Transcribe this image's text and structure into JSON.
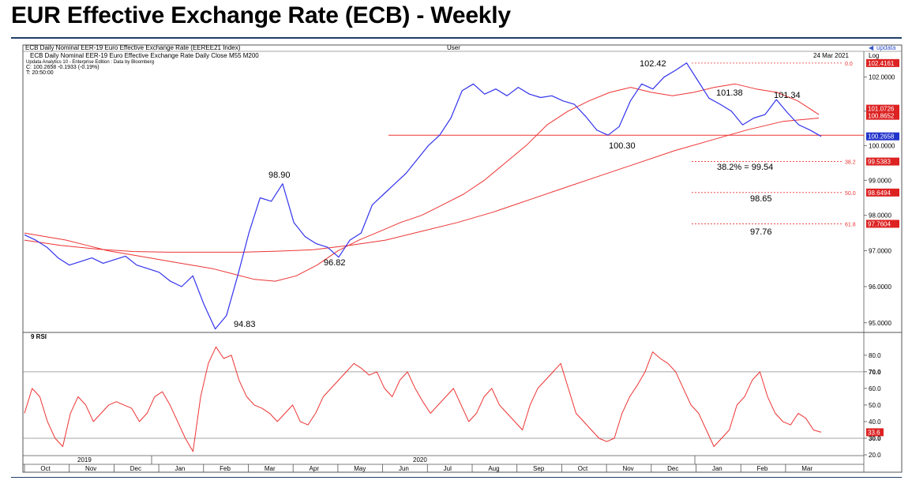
{
  "title": "EUR Effective Exchange Rate (ECB) - Weekly",
  "terminal": {
    "header_left": "ECB Daily Nominal EER-19 Euro Effective Exchange Rate (EEREE21 Index)",
    "header_mid": "User",
    "header_right": "updata",
    "subheader": "ECB Daily Nominal EER-19 Euro Effective Exchange Rate Daily Close M55   M200",
    "date": "24 Mar 2021",
    "scale": "Log",
    "source_line": "Updata Analytics 10 - Enterprise Edition : Data by Bloomberg",
    "close_line": "C: 100.2658  -0.1933 (-0.19%)",
    "time_line": "T: 20:50:00",
    "rsi_label": "9 RSI"
  },
  "chart_data": [
    {
      "type": "line",
      "series": [
        {
          "name": "EEREE21 Index",
          "color": "#3333ee",
          "values": [
            97.45,
            97.3,
            97.1,
            96.8,
            96.6,
            96.7,
            96.8,
            96.65,
            96.75,
            96.85,
            96.6,
            96.5,
            96.4,
            96.15,
            96.0,
            96.3,
            95.5,
            94.83,
            95.2,
            96.3,
            97.5,
            98.5,
            98.4,
            98.9,
            97.8,
            97.4,
            97.2,
            97.1,
            96.82,
            97.3,
            97.5,
            98.3,
            98.6,
            98.9,
            99.2,
            99.6,
            100.0,
            100.3,
            100.8,
            101.6,
            101.8,
            101.5,
            101.65,
            101.45,
            101.7,
            101.5,
            101.4,
            101.45,
            101.3,
            101.2,
            100.85,
            100.45,
            100.3,
            100.55,
            101.3,
            101.8,
            101.65,
            102.0,
            102.2,
            102.42,
            101.9,
            101.38,
            101.2,
            101.0,
            100.6,
            100.8,
            100.9,
            101.34,
            100.95,
            100.6,
            100.45,
            100.2658
          ]
        },
        {
          "name": "M55",
          "color": "#ee3333",
          "values": [
            97.5,
            97.4,
            97.3,
            97.15,
            97.0,
            96.9,
            96.8,
            96.7,
            96.6,
            96.5,
            96.35,
            96.2,
            96.15,
            96.3,
            96.6,
            97.0,
            97.3,
            97.55,
            97.8,
            98.0,
            98.3,
            98.6,
            99.0,
            99.5,
            100.0,
            100.6,
            101.0,
            101.3,
            101.55,
            101.7,
            101.55,
            101.45,
            101.55,
            101.7,
            101.8,
            101.65,
            101.55,
            101.3,
            100.9
          ]
        },
        {
          "name": "M200",
          "color": "#ee3333",
          "values": [
            97.3,
            97.15,
            97.05,
            96.98,
            96.96,
            96.96,
            96.96,
            96.99,
            97.03,
            97.15,
            97.3,
            97.55,
            97.8,
            98.1,
            98.45,
            98.8,
            99.15,
            99.5,
            99.85,
            100.15,
            100.45,
            100.7,
            100.8
          ]
        }
      ],
      "ylim": [
        94.8,
        102.6
      ],
      "yticks": [
        "102.0000",
        "101.0000",
        "100.0000",
        "99.0000",
        "98.0000",
        "97.0000",
        "96.0000",
        "95.0000"
      ],
      "annotations": [
        "102.42",
        "101.38",
        "101.34",
        "100.30",
        "98.90",
        "96.82",
        "94.83",
        "38.2% = 99.54",
        "98.65",
        "97.76"
      ],
      "levels": [
        {
          "label": "0.0",
          "value": 102.4161,
          "badge": "102.4161"
        },
        {
          "label": "38.2",
          "value": 99.5383,
          "badge": "99.5383"
        },
        {
          "label": "50.0",
          "value": 98.6494,
          "badge": "98.6494"
        },
        {
          "label": "61.8",
          "value": 97.7604,
          "badge": "97.7604"
        }
      ],
      "horizontal_line": 100.3,
      "value_badges": [
        "101.0726",
        "100.8652",
        "100.2658"
      ]
    },
    {
      "type": "line",
      "series": [
        {
          "name": "9 RSI",
          "color": "#ee3333",
          "values": [
            45,
            60,
            55,
            40,
            30,
            25,
            45,
            55,
            50,
            40,
            45,
            50,
            52,
            50,
            48,
            40,
            45,
            55,
            58,
            50,
            40,
            30,
            22,
            55,
            75,
            85,
            78,
            80,
            65,
            55,
            50,
            48,
            45,
            40,
            45,
            50,
            40,
            38,
            45,
            55,
            60,
            65,
            70,
            75,
            72,
            68,
            70,
            60,
            55,
            65,
            70,
            60,
            52,
            45,
            50,
            55,
            60,
            50,
            40,
            45,
            55,
            60,
            50,
            45,
            40,
            35,
            50,
            60,
            65,
            70,
            75,
            60,
            45,
            40,
            35,
            30,
            28,
            30,
            45,
            55,
            62,
            70,
            82,
            78,
            75,
            70,
            60,
            50,
            45,
            35,
            25,
            30,
            35,
            50,
            55,
            65,
            70,
            55,
            45,
            40,
            38,
            45,
            42,
            35,
            33.6
          ]
        }
      ],
      "ylim": [
        20,
        88
      ],
      "yticks": [
        "80.0",
        "70.0",
        "60.0",
        "50.0",
        "40.0",
        "30.0",
        "20.0"
      ],
      "levels": [
        70,
        30
      ],
      "value_badge": "33.6"
    }
  ],
  "x_axis": {
    "years": [
      "2019",
      "2020"
    ],
    "months": [
      "Oct",
      "Nov",
      "Dec",
      "Jan",
      "Feb",
      "Mar",
      "Apr",
      "May",
      "Jun",
      "Jul",
      "Aug",
      "Sep",
      "Oct",
      "Nov",
      "Dec",
      "Jan",
      "Feb",
      "Mar"
    ]
  }
}
